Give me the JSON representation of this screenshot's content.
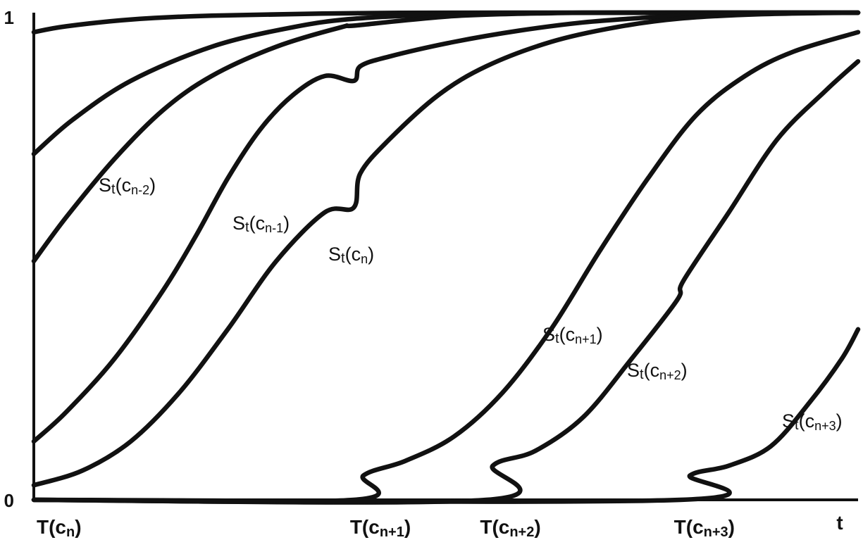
{
  "chart_data": {
    "type": "line",
    "title": "",
    "xlabel": "t",
    "ylabel": "",
    "y_ticks": [
      "0",
      "1"
    ],
    "ylim": [
      0,
      1
    ],
    "x_ticks": [
      {
        "symbol": "T",
        "sub": "n",
        "value": 0
      },
      {
        "symbol": "T",
        "sub": "n+1",
        "value": 1
      },
      {
        "symbol": "T",
        "sub": "n+2",
        "value": 1.4
      },
      {
        "symbol": "T",
        "sub": "n+3",
        "value": 2
      }
    ],
    "xlim": [
      0,
      2.55
    ],
    "grid": false,
    "legend": "none",
    "series": [
      {
        "name": "St(cn-2)",
        "label": {
          "S": "S",
          "t": "t",
          "var": "c",
          "sub": "n-2"
        },
        "points": [
          [
            0,
            0.96
          ],
          [
            0.1,
            0.972
          ],
          [
            0.3,
            0.986
          ],
          [
            0.55,
            0.994
          ],
          [
            1.0,
            0.999
          ],
          [
            1.5,
            1.0
          ],
          [
            2.55,
            1.0
          ]
        ]
      },
      {
        "name": "",
        "points": [
          [
            0,
            0.71
          ],
          [
            0.12,
            0.78
          ],
          [
            0.3,
            0.86
          ],
          [
            0.55,
            0.93
          ],
          [
            0.8,
            0.97
          ],
          [
            1.0,
            0.988
          ],
          [
            1.3,
            0.997
          ],
          [
            1.7,
            1.0
          ],
          [
            2.55,
            1.0
          ]
        ]
      },
      {
        "name": "St(cn-1)",
        "label": {
          "S": "S",
          "t": "t",
          "var": "c",
          "sub": "n-1"
        },
        "points": [
          [
            0,
            0.49
          ],
          [
            0.1,
            0.58
          ],
          [
            0.25,
            0.7
          ],
          [
            0.4,
            0.8
          ],
          [
            0.55,
            0.87
          ],
          [
            0.75,
            0.93
          ],
          [
            0.95,
            0.97
          ],
          [
            1.0,
            0.974
          ],
          [
            1.3,
            0.993
          ],
          [
            1.6,
            0.999
          ],
          [
            1.9,
            1.0
          ],
          [
            2.55,
            1.0
          ]
        ]
      },
      {
        "name": "",
        "points": [
          [
            0,
            0.12
          ],
          [
            0.1,
            0.18
          ],
          [
            0.25,
            0.29
          ],
          [
            0.4,
            0.43
          ],
          [
            0.5,
            0.54
          ],
          [
            0.6,
            0.66
          ],
          [
            0.7,
            0.76
          ],
          [
            0.8,
            0.83
          ],
          [
            0.9,
            0.87
          ],
          [
            0.99,
            0.86
          ],
          [
            1.01,
            0.89
          ],
          [
            1.1,
            0.91
          ],
          [
            1.3,
            0.94
          ],
          [
            1.5,
            0.963
          ],
          [
            1.7,
            0.98
          ],
          [
            1.9,
            0.99
          ],
          [
            2.1,
            0.997
          ],
          [
            2.3,
            1.0
          ],
          [
            2.55,
            1.0
          ]
        ]
      },
      {
        "name": "St(cn)",
        "label": {
          "S": "S",
          "t": "t",
          "var": "c",
          "sub": "n"
        },
        "points": [
          [
            0,
            0.03
          ],
          [
            0.15,
            0.06
          ],
          [
            0.3,
            0.12
          ],
          [
            0.45,
            0.22
          ],
          [
            0.6,
            0.35
          ],
          [
            0.75,
            0.49
          ],
          [
            0.9,
            0.59
          ],
          [
            0.99,
            0.6
          ],
          [
            1.01,
            0.67
          ],
          [
            1.1,
            0.74
          ],
          [
            1.25,
            0.83
          ],
          [
            1.4,
            0.89
          ],
          [
            1.6,
            0.94
          ],
          [
            1.8,
            0.97
          ],
          [
            2.0,
            0.988
          ],
          [
            2.25,
            0.997
          ],
          [
            2.55,
            1.0
          ]
        ]
      },
      {
        "name": "St(cn+1)",
        "label": {
          "S": "S",
          "t": "t",
          "var": "c",
          "sub": "n+1"
        },
        "points": [
          [
            0,
            0.0
          ],
          [
            0.99,
            0.0
          ],
          [
            1.02,
            0.05
          ],
          [
            1.15,
            0.08
          ],
          [
            1.3,
            0.13
          ],
          [
            1.45,
            0.22
          ],
          [
            1.6,
            0.35
          ],
          [
            1.75,
            0.51
          ],
          [
            1.9,
            0.66
          ],
          [
            2.05,
            0.79
          ],
          [
            2.2,
            0.87
          ],
          [
            2.35,
            0.92
          ],
          [
            2.55,
            0.96
          ]
        ]
      },
      {
        "name": "St(cn+2)",
        "label": {
          "S": "S",
          "t": "t",
          "var": "c",
          "sub": "n+2"
        },
        "points": [
          [
            0,
            0.0
          ],
          [
            1.4,
            0.0
          ],
          [
            1.42,
            0.07
          ],
          [
            1.55,
            0.1
          ],
          [
            1.7,
            0.17
          ],
          [
            1.85,
            0.29
          ],
          [
            1.99,
            0.41
          ],
          [
            2.01,
            0.45
          ],
          [
            2.15,
            0.59
          ],
          [
            2.3,
            0.74
          ],
          [
            2.45,
            0.84
          ],
          [
            2.55,
            0.9
          ]
        ]
      },
      {
        "name": "St(cn+3)",
        "label": {
          "S": "S",
          "t": "t",
          "var": "c",
          "sub": "n+3"
        },
        "points": [
          [
            0,
            0.0
          ],
          [
            2.0,
            0.0
          ],
          [
            2.03,
            0.05
          ],
          [
            2.15,
            0.07
          ],
          [
            2.28,
            0.11
          ],
          [
            2.4,
            0.2
          ],
          [
            2.5,
            0.29
          ],
          [
            2.55,
            0.35
          ]
        ]
      }
    ]
  }
}
